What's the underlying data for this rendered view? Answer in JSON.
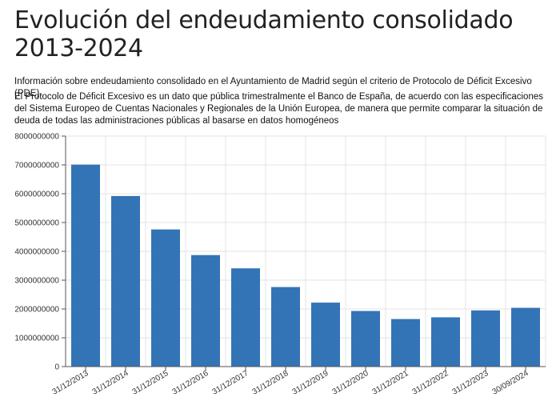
{
  "page": {
    "title": "Evolución del endeudamiento consolidado 2013-2024",
    "intro": "Información sobre endeudamiento consolidado en el Ayuntamiento de Madrid según el criterio de Protocolo de Déficit Excesivo (PDE).",
    "description": "El Protocolo de Déficit Excesivo es un dato que pública trimestralmente el Banco de España, de acuerdo con las especificaciones del Sistema Europeo de Cuentas Nacionales y Regionales de la Unión Europea, de manera que permite comparar la situación de deuda de todas las administraciones públicas al basarse en datos homogéneos"
  },
  "chart_data": {
    "type": "bar",
    "title": "",
    "xlabel": "",
    "ylabel": "",
    "categories": [
      "31/12/2013",
      "31/12/2014",
      "31/12/2015",
      "31/12/2016",
      "31/12/2017",
      "31/12/2018",
      "31/12/2019",
      "31/12/2020",
      "31/12/2021",
      "31/12/2022",
      "31/12/2023",
      "30/09/2024"
    ],
    "values": [
      7010000000,
      5920000000,
      4760000000,
      3870000000,
      3410000000,
      2760000000,
      2220000000,
      1930000000,
      1650000000,
      1710000000,
      1950000000,
      2040000000
    ],
    "ylim": [
      0,
      8000000000
    ],
    "yticks": [
      "0",
      "1000000000",
      "2000000000",
      "3000000000",
      "4000000000",
      "5000000000",
      "6000000000",
      "7000000000",
      "8000000000"
    ],
    "grid": true,
    "colors": {
      "bar": "#3374b6"
    }
  }
}
